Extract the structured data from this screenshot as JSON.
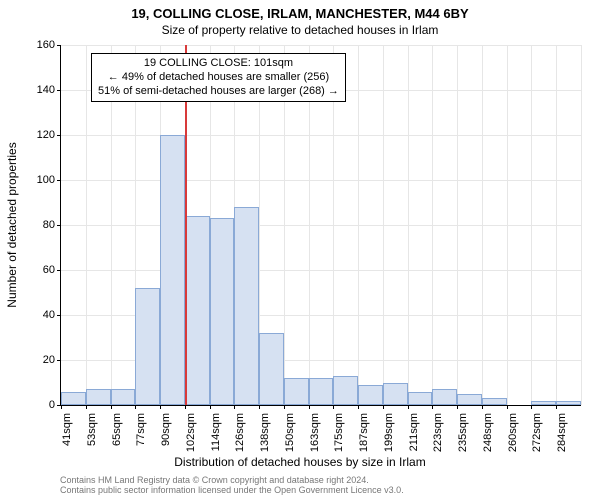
{
  "chart": {
    "type": "histogram",
    "title": "19, COLLING CLOSE, IRLAM, MANCHESTER, M44 6BY",
    "subtitle": "Size of property relative to detached houses in Irlam",
    "xlabel": "Distribution of detached houses by size in Irlam",
    "ylabel": "Number of detached properties",
    "categories": [
      "41sqm",
      "53sqm",
      "65sqm",
      "77sqm",
      "90sqm",
      "102sqm",
      "114sqm",
      "126sqm",
      "138sqm",
      "150sqm",
      "163sqm",
      "175sqm",
      "187sqm",
      "199sqm",
      "211sqm",
      "223sqm",
      "235sqm",
      "248sqm",
      "260sqm",
      "272sqm",
      "284sqm"
    ],
    "values": [
      6,
      7,
      7,
      52,
      120,
      84,
      83,
      88,
      32,
      12,
      12,
      13,
      9,
      10,
      6,
      7,
      5,
      3,
      0,
      2,
      2
    ],
    "bar_fill": "#d6e1f2",
    "bar_stroke": "#8aa9d6",
    "grid_color": "#e6e6e6",
    "background_color": "#ffffff",
    "ylim": [
      0,
      160
    ],
    "ytick_step": 20,
    "reference_line": {
      "x_index": 5.0,
      "color": "#d83a3a"
    },
    "annotation": {
      "line1": "19 COLLING CLOSE: 101sqm",
      "line2": "← 49% of detached houses are smaller (256)",
      "line3": "51% of semi-detached houses are larger (268) →"
    },
    "title_fontsize": 13,
    "label_fontsize": 12,
    "tick_fontsize": 11
  },
  "footer": {
    "line1": "Contains HM Land Registry data © Crown copyright and database right 2024.",
    "line2": "Contains public sector information licensed under the Open Government Licence v3.0."
  }
}
